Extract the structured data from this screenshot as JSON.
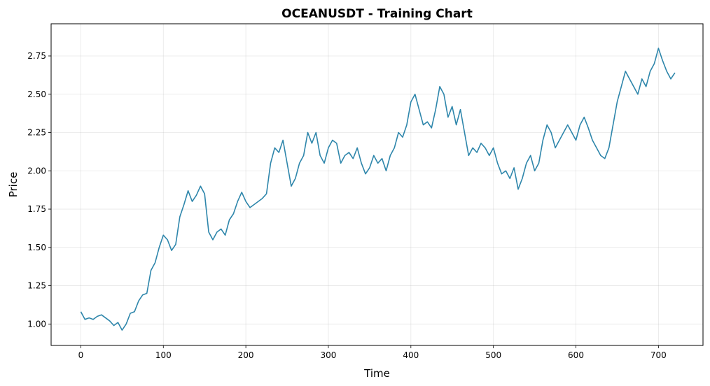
{
  "chart_data": {
    "type": "line",
    "title": "OCEANUSDT - Training Chart",
    "xlabel": "Time",
    "ylabel": "Price",
    "xlim": [
      -36,
      754
    ],
    "ylim": [
      0.86,
      2.96
    ],
    "xticks": [
      0,
      100,
      200,
      300,
      400,
      500,
      600,
      700
    ],
    "xtick_labels": [
      "0",
      "100",
      "200",
      "300",
      "400",
      "500",
      "600",
      "700"
    ],
    "yticks": [
      1.0,
      1.25,
      1.5,
      1.75,
      2.0,
      2.25,
      2.5,
      2.75
    ],
    "ytick_labels": [
      "1.00",
      "1.25",
      "1.50",
      "1.75",
      "2.00",
      "2.25",
      "2.50",
      "2.75"
    ],
    "grid": true,
    "legend": "none",
    "line_color": "#2e86ab",
    "series": [
      {
        "x": [
          0,
          5,
          10,
          15,
          20,
          25,
          30,
          35,
          40,
          45,
          50,
          55,
          60,
          65,
          70,
          75,
          80,
          85,
          90,
          95,
          100,
          105,
          110,
          115,
          120,
          125,
          130,
          135,
          140,
          145,
          150,
          155,
          160,
          165,
          170,
          175,
          180,
          185,
          190,
          195,
          200,
          205,
          210,
          215,
          220,
          225,
          230,
          235,
          240,
          245,
          250,
          255,
          260,
          265,
          270,
          275,
          280,
          285,
          290,
          295,
          300,
          305,
          310,
          315,
          320,
          325,
          330,
          335,
          340,
          345,
          350,
          355,
          360,
          365,
          370,
          375,
          380,
          385,
          390,
          395,
          400,
          405,
          410,
          415,
          420,
          425,
          430,
          435,
          440,
          445,
          450,
          455,
          460,
          465,
          470,
          475,
          480,
          485,
          490,
          495,
          500,
          505,
          510,
          515,
          520,
          525,
          530,
          535,
          540,
          545,
          550,
          555,
          560,
          565,
          570,
          575,
          580,
          585,
          590,
          595,
          600,
          605,
          610,
          615,
          620,
          625,
          630,
          635,
          640,
          645,
          650,
          655,
          660,
          665,
          670,
          675,
          680,
          685,
          690,
          695,
          700,
          705,
          710,
          715,
          720
        ],
        "values": [
          1.08,
          1.03,
          1.04,
          1.03,
          1.05,
          1.06,
          1.04,
          1.02,
          0.99,
          1.01,
          0.96,
          1.0,
          1.07,
          1.08,
          1.15,
          1.19,
          1.2,
          1.35,
          1.4,
          1.5,
          1.58,
          1.55,
          1.48,
          1.52,
          1.7,
          1.78,
          1.87,
          1.8,
          1.84,
          1.9,
          1.85,
          1.6,
          1.55,
          1.6,
          1.62,
          1.58,
          1.68,
          1.72,
          1.8,
          1.86,
          1.8,
          1.76,
          1.78,
          1.8,
          1.82,
          1.85,
          2.05,
          2.15,
          2.12,
          2.2,
          2.05,
          1.9,
          1.95,
          2.05,
          2.1,
          2.25,
          2.18,
          2.25,
          2.1,
          2.05,
          2.15,
          2.2,
          2.18,
          2.05,
          2.1,
          2.12,
          2.08,
          2.15,
          2.05,
          1.98,
          2.02,
          2.1,
          2.05,
          2.08,
          2.0,
          2.1,
          2.15,
          2.25,
          2.22,
          2.3,
          2.45,
          2.5,
          2.4,
          2.3,
          2.32,
          2.28,
          2.4,
          2.55,
          2.5,
          2.35,
          2.42,
          2.3,
          2.4,
          2.25,
          2.1,
          2.15,
          2.12,
          2.18,
          2.15,
          2.1,
          2.15,
          2.05,
          1.98,
          2.0,
          1.95,
          2.02,
          1.88,
          1.95,
          2.05,
          2.1,
          2.0,
          2.05,
          2.2,
          2.3,
          2.25,
          2.15,
          2.2,
          2.25,
          2.3,
          2.25,
          2.2,
          2.3,
          2.35,
          2.28,
          2.2,
          2.15,
          2.1,
          2.08,
          2.15,
          2.3,
          2.45,
          2.55,
          2.65,
          2.6,
          2.55,
          2.5,
          2.6,
          2.55,
          2.65,
          2.7,
          2.8,
          2.72,
          2.65,
          2.6,
          2.64
        ]
      }
    ]
  }
}
